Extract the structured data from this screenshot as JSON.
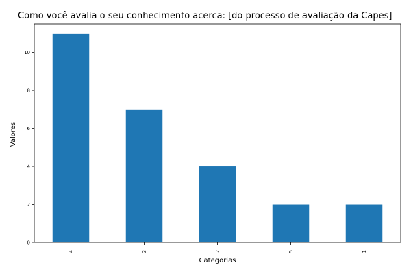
{
  "chart_data": {
    "type": "bar",
    "title": "Como você avalia o seu conhecimento acerca: [do processo de avaliação da Capes]",
    "xlabel": "Categorias",
    "ylabel": "Valores",
    "categories": [
      "4",
      "3",
      "2",
      "5",
      "1"
    ],
    "values": [
      11,
      7,
      4,
      2,
      2
    ],
    "ylim": [
      0,
      11.5
    ],
    "yticks": [
      0,
      2,
      4,
      6,
      8,
      10
    ],
    "grid": false,
    "legend": "none",
    "bar_color": "#1f77b4"
  }
}
